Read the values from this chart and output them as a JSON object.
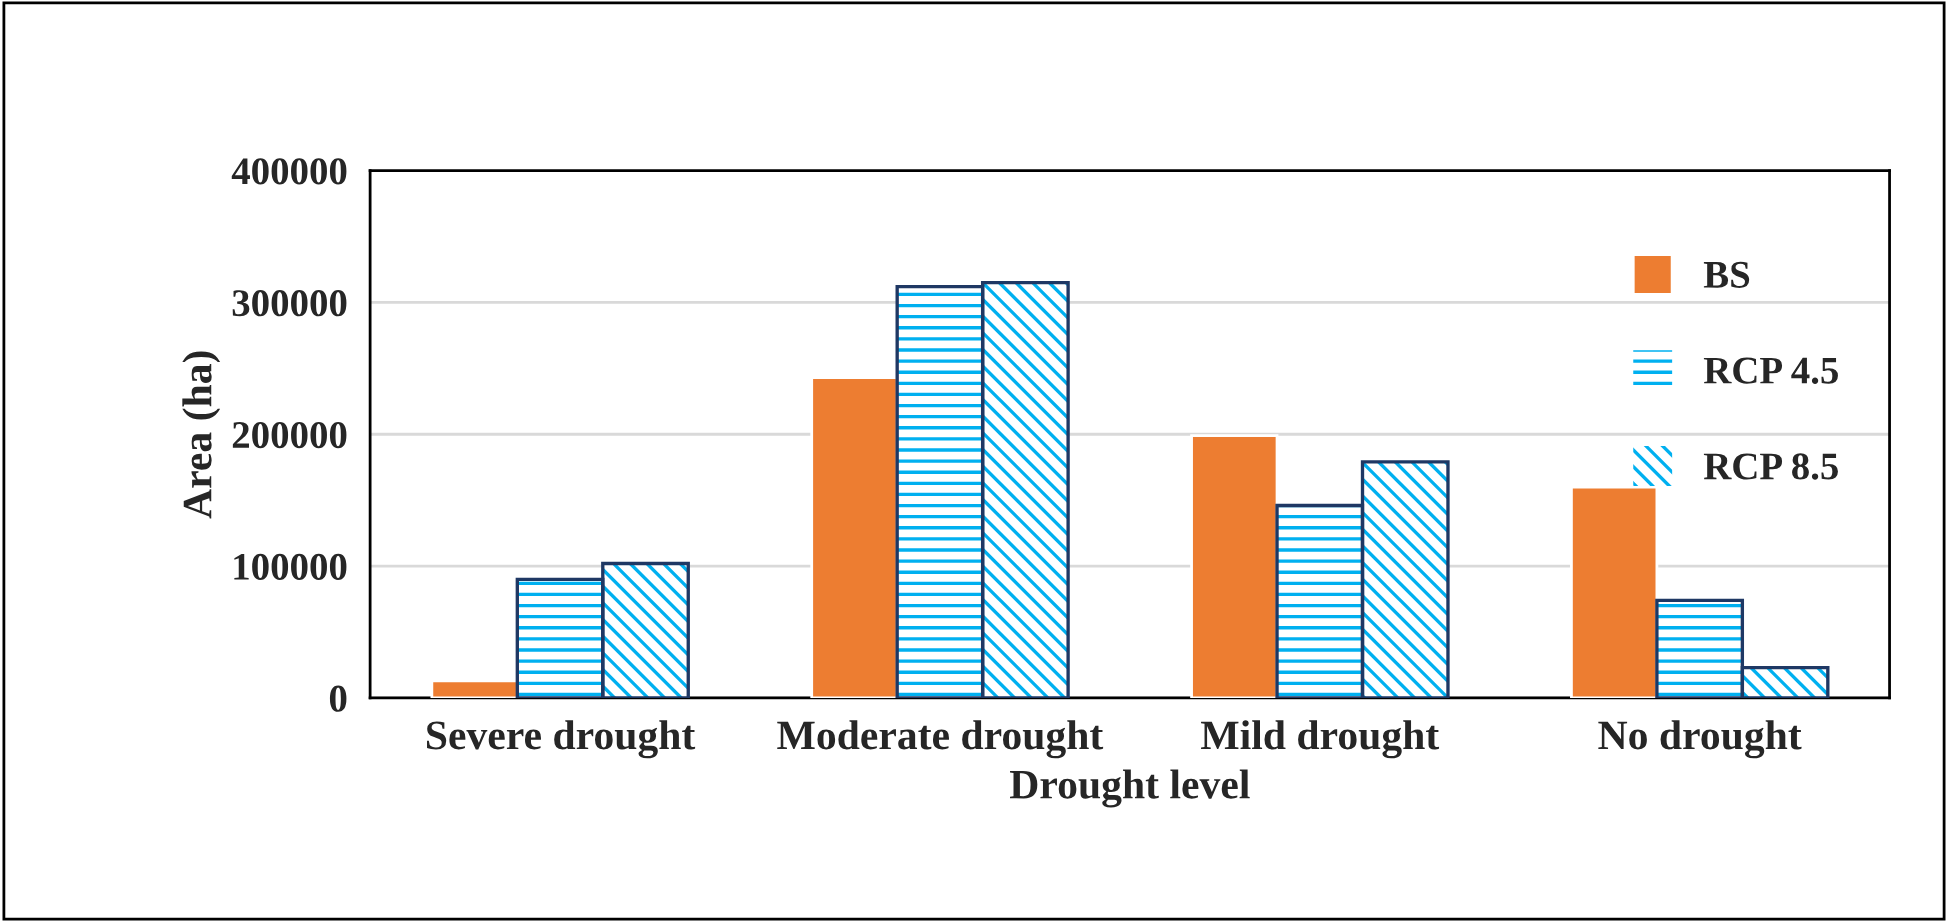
{
  "chart_data": {
    "type": "bar",
    "xlabel": "Drought level",
    "ylabel": "Area (ha)",
    "categories": [
      "Severe drought",
      "Moderate drought",
      "Mild drought",
      "No drought"
    ],
    "series": [
      {
        "name": "BS",
        "color": "#ed7d31",
        "values": [
          13000,
          243000,
          199000,
          160000
        ]
      },
      {
        "name": "RCP 4.5",
        "color": "#00b0f0",
        "values": [
          90000,
          312000,
          146000,
          74000
        ]
      },
      {
        "name": "RCP 8.5",
        "color": "#00b0f0",
        "values": [
          102000,
          315000,
          179000,
          23000
        ]
      }
    ],
    "ylim": [
      0,
      400000
    ],
    "yticks": [
      0,
      100000,
      200000,
      300000,
      400000
    ],
    "grid": "y",
    "legend": "right"
  }
}
